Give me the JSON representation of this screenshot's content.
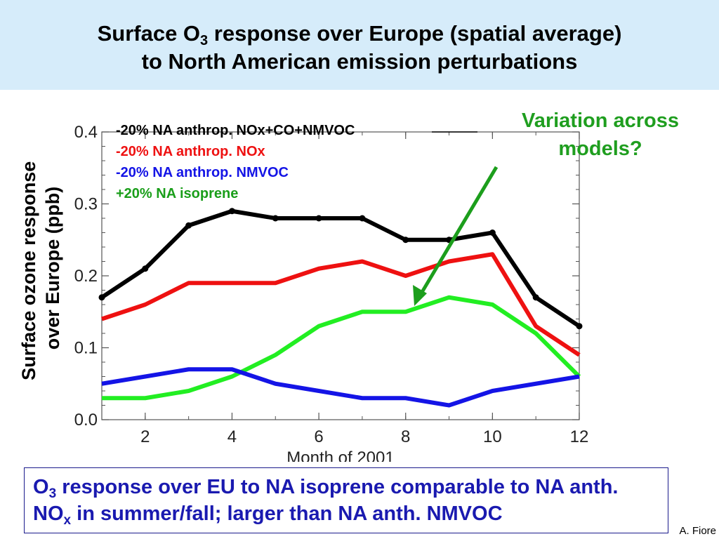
{
  "header": {
    "title_line1_pre": "Surface O",
    "title_line1_sub": "3",
    "title_line1_post": " response over Europe (spatial average)",
    "title_line2": "to North American emission perturbations"
  },
  "annotation": {
    "text_line1": "Variation across",
    "text_line2": "models?",
    "color": "#1f9e1f"
  },
  "conclusion": {
    "part1": "O",
    "sub1": "3",
    "part2": " response over EU to NA isoprene comparable to NA anth. NO",
    "sub2": "x",
    "part3": " in summer/fall; larger than NA anth. NMVOC"
  },
  "credit": "A. Fiore",
  "chart_data": {
    "type": "line",
    "title": "",
    "xlabel": "Month of 2001",
    "ylabel_line1": "Surface ozone response",
    "ylabel_line2": "over Europe (ppb)",
    "xlim": [
      1,
      12
    ],
    "ylim": [
      0.0,
      0.4
    ],
    "xticks": [
      2,
      4,
      6,
      8,
      10,
      12
    ],
    "xtick_labels": [
      "2",
      "4",
      "6",
      "8",
      "10",
      "12"
    ],
    "yticks": [
      0.0,
      0.1,
      0.2,
      0.3,
      0.4
    ],
    "ytick_labels": [
      "0.0",
      "0.1",
      "0.2",
      "0.3",
      "0.4"
    ],
    "grid": false,
    "legend_position": "top-left",
    "x": [
      1,
      2,
      3,
      4,
      5,
      6,
      7,
      8,
      9,
      10,
      11,
      12
    ],
    "series": [
      {
        "name": "-20% NA anthrop. NOx+CO+NMVOC",
        "color": "#000000",
        "markers": true,
        "values": [
          0.17,
          0.21,
          0.27,
          0.29,
          0.28,
          0.28,
          0.28,
          0.25,
          0.25,
          0.26,
          0.17,
          0.13
        ]
      },
      {
        "name": "-20% NA anthrop. NOx",
        "color": "#ee1111",
        "markers": false,
        "values": [
          0.14,
          0.16,
          0.19,
          0.19,
          0.19,
          0.21,
          0.22,
          0.2,
          0.22,
          0.23,
          0.13,
          0.09
        ]
      },
      {
        "name": "-20% NA anthrop. NMVOC",
        "color": "#1414e6",
        "markers": false,
        "values": [
          0.05,
          0.06,
          0.07,
          0.07,
          0.05,
          0.04,
          0.03,
          0.03,
          0.02,
          0.04,
          0.05,
          0.06
        ]
      },
      {
        "name": "+20% NA isoprene",
        "color": "#22ee22",
        "markers": false,
        "values": [
          0.03,
          0.03,
          0.04,
          0.06,
          0.09,
          0.13,
          0.15,
          0.15,
          0.17,
          0.16,
          0.12,
          0.06
        ]
      }
    ]
  }
}
